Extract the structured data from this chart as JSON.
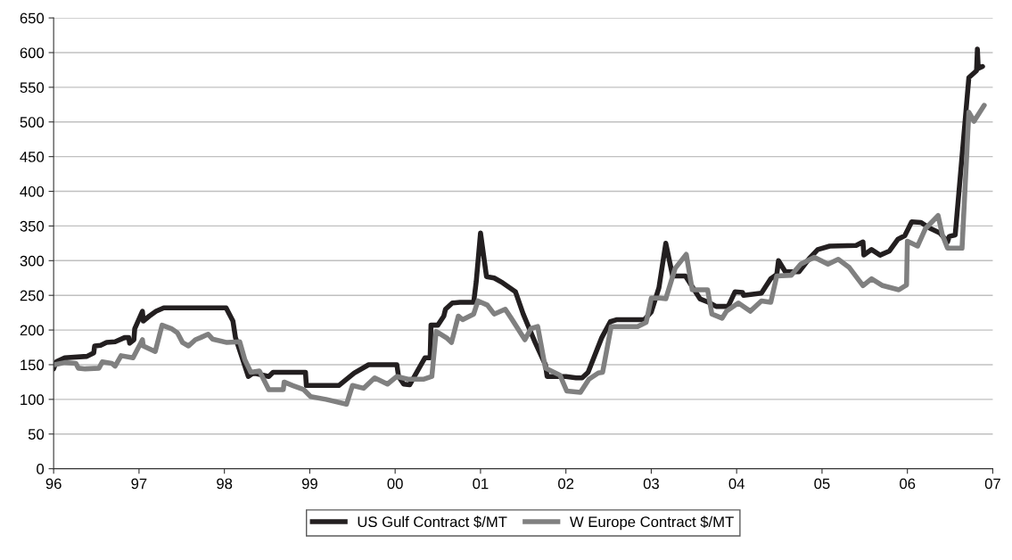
{
  "chart_data": {
    "type": "line",
    "xlim": [
      1996,
      2007
    ],
    "ylim": [
      0,
      650
    ],
    "xticks": [
      {
        "value": 1996,
        "label": "96"
      },
      {
        "value": 1997,
        "label": "97"
      },
      {
        "value": 1998,
        "label": "98"
      },
      {
        "value": 1999,
        "label": "99"
      },
      {
        "value": 2000,
        "label": "00"
      },
      {
        "value": 2001,
        "label": "01"
      },
      {
        "value": 2002,
        "label": "02"
      },
      {
        "value": 2003,
        "label": "03"
      },
      {
        "value": 2004,
        "label": "04"
      },
      {
        "value": 2005,
        "label": "05"
      },
      {
        "value": 2006,
        "label": "06"
      },
      {
        "value": 2007,
        "label": "07"
      }
    ],
    "yticks": [
      0,
      50,
      100,
      150,
      200,
      250,
      300,
      350,
      400,
      450,
      500,
      550,
      600,
      650
    ],
    "grid": "y",
    "legend": "bottom",
    "marker": "none",
    "line_style": "solid",
    "series": [
      {
        "name": "US Gulf Contract $/MT",
        "color": "#231f20",
        "x": [
          1996.0,
          1996.03,
          1996.13,
          1996.39,
          1996.47,
          1996.48,
          1996.55,
          1996.62,
          1996.72,
          1996.83,
          1996.88,
          1996.89,
          1996.94,
          1996.95,
          1997.04,
          1997.05,
          1997.12,
          1997.2,
          1997.29,
          1998.02,
          1998.1,
          1998.13,
          1998.28,
          1998.34,
          1998.52,
          1998.57,
          1998.95,
          1998.96,
          1999.34,
          1999.52,
          1999.69,
          2000.02,
          2000.04,
          2000.1,
          2000.17,
          2000.28,
          2000.35,
          2000.41,
          2000.42,
          2000.5,
          2000.57,
          2000.59,
          2000.67,
          2000.76,
          2000.92,
          2000.95,
          2001.0,
          2001.07,
          2001.16,
          2001.26,
          2001.41,
          2001.5,
          2001.64,
          2001.76,
          2001.78,
          2002.0,
          2002.12,
          2002.19,
          2002.26,
          2002.42,
          2002.52,
          2002.6,
          2002.92,
          2003.0,
          2003.09,
          2003.17,
          2003.25,
          2003.4,
          2003.57,
          2003.67,
          2003.76,
          2003.9,
          2003.98,
          2004.07,
          2004.08,
          2004.29,
          2004.4,
          2004.47,
          2004.49,
          2004.57,
          2004.73,
          2004.85,
          2004.95,
          2005.09,
          2005.4,
          2005.48,
          2005.49,
          2005.58,
          2005.68,
          2005.79,
          2005.89,
          2005.97,
          2006.05,
          2006.16,
          2006.26,
          2006.38,
          2006.47,
          2006.49,
          2006.56,
          2006.72,
          2006.81,
          2006.82,
          2006.83,
          2006.88
        ],
        "values": [
          144,
          154,
          160,
          162,
          167,
          177,
          178,
          182,
          183,
          189,
          189,
          181,
          186,
          202,
          227,
          213,
          220,
          227,
          232,
          232,
          213,
          189,
          133,
          138,
          133,
          139,
          139,
          120,
          120,
          138,
          150,
          150,
          133,
          122,
          121,
          145,
          160,
          160,
          207,
          207,
          220,
          230,
          239,
          240,
          240,
          270,
          340,
          277,
          275,
          268,
          255,
          223,
          182,
          150,
          133,
          133,
          131,
          131,
          139,
          189,
          212,
          215,
          215,
          226,
          261,
          325,
          278,
          278,
          245,
          240,
          234,
          234,
          255,
          254,
          250,
          253,
          274,
          280,
          300,
          284,
          284,
          303,
          316,
          321,
          322,
          327,
          308,
          316,
          308,
          314,
          331,
          336,
          356,
          355,
          347,
          340,
          327,
          335,
          337,
          564,
          574,
          605,
          577,
          580
        ]
      },
      {
        "name": "W Europe Contract $/MT",
        "color": "#808080",
        "x": [
          1996.01,
          1996.13,
          1996.26,
          1996.29,
          1996.37,
          1996.53,
          1996.57,
          1996.68,
          1996.72,
          1996.79,
          1996.93,
          1997.04,
          1997.05,
          1997.19,
          1997.27,
          1997.38,
          1997.45,
          1997.51,
          1997.58,
          1997.66,
          1997.72,
          1997.81,
          1997.86,
          1998.03,
          1998.18,
          1998.24,
          1998.31,
          1998.41,
          1998.52,
          1998.69,
          1998.7,
          1998.8,
          1998.93,
          1999.01,
          1999.19,
          1999.43,
          1999.5,
          1999.63,
          1999.76,
          1999.91,
          2000.02,
          2000.15,
          2000.33,
          2000.43,
          2000.48,
          2000.61,
          2000.66,
          2000.74,
          2000.79,
          2000.92,
          2000.97,
          2001.08,
          2001.16,
          2001.29,
          2001.36,
          2001.52,
          2001.59,
          2001.67,
          2001.76,
          2001.93,
          2002.01,
          2002.17,
          2002.27,
          2002.38,
          2002.43,
          2002.53,
          2002.84,
          2002.94,
          2003.0,
          2003.1,
          2003.17,
          2003.28,
          2003.41,
          2003.48,
          2003.66,
          2003.71,
          2003.83,
          2003.88,
          2004.02,
          2004.16,
          2004.29,
          2004.4,
          2004.47,
          2004.64,
          2004.75,
          2004.91,
          2005.07,
          2005.19,
          2005.32,
          2005.48,
          2005.58,
          2005.71,
          2005.9,
          2005.99,
          2006.0,
          2006.12,
          2006.21,
          2006.36,
          2006.41,
          2006.47,
          2006.64,
          2006.72,
          2006.78,
          2006.9
        ],
        "values": [
          150,
          153,
          152,
          145,
          144,
          145,
          154,
          152,
          148,
          163,
          160,
          186,
          177,
          169,
          207,
          202,
          196,
          182,
          177,
          186,
          189,
          194,
          187,
          182,
          183,
          157,
          139,
          141,
          114,
          114,
          125,
          120,
          114,
          104,
          100,
          93,
          120,
          116,
          131,
          122,
          133,
          129,
          129,
          133,
          198,
          188,
          182,
          220,
          215,
          223,
          242,
          236,
          223,
          230,
          217,
          186,
          202,
          205,
          145,
          135,
          112,
          110,
          129,
          138,
          139,
          205,
          205,
          211,
          246,
          246,
          245,
          289,
          309,
          258,
          258,
          223,
          217,
          227,
          239,
          227,
          242,
          240,
          278,
          279,
          295,
          305,
          295,
          302,
          290,
          264,
          274,
          264,
          258,
          265,
          328,
          321,
          346,
          365,
          337,
          318,
          318,
          514,
          501,
          524
        ]
      }
    ]
  }
}
